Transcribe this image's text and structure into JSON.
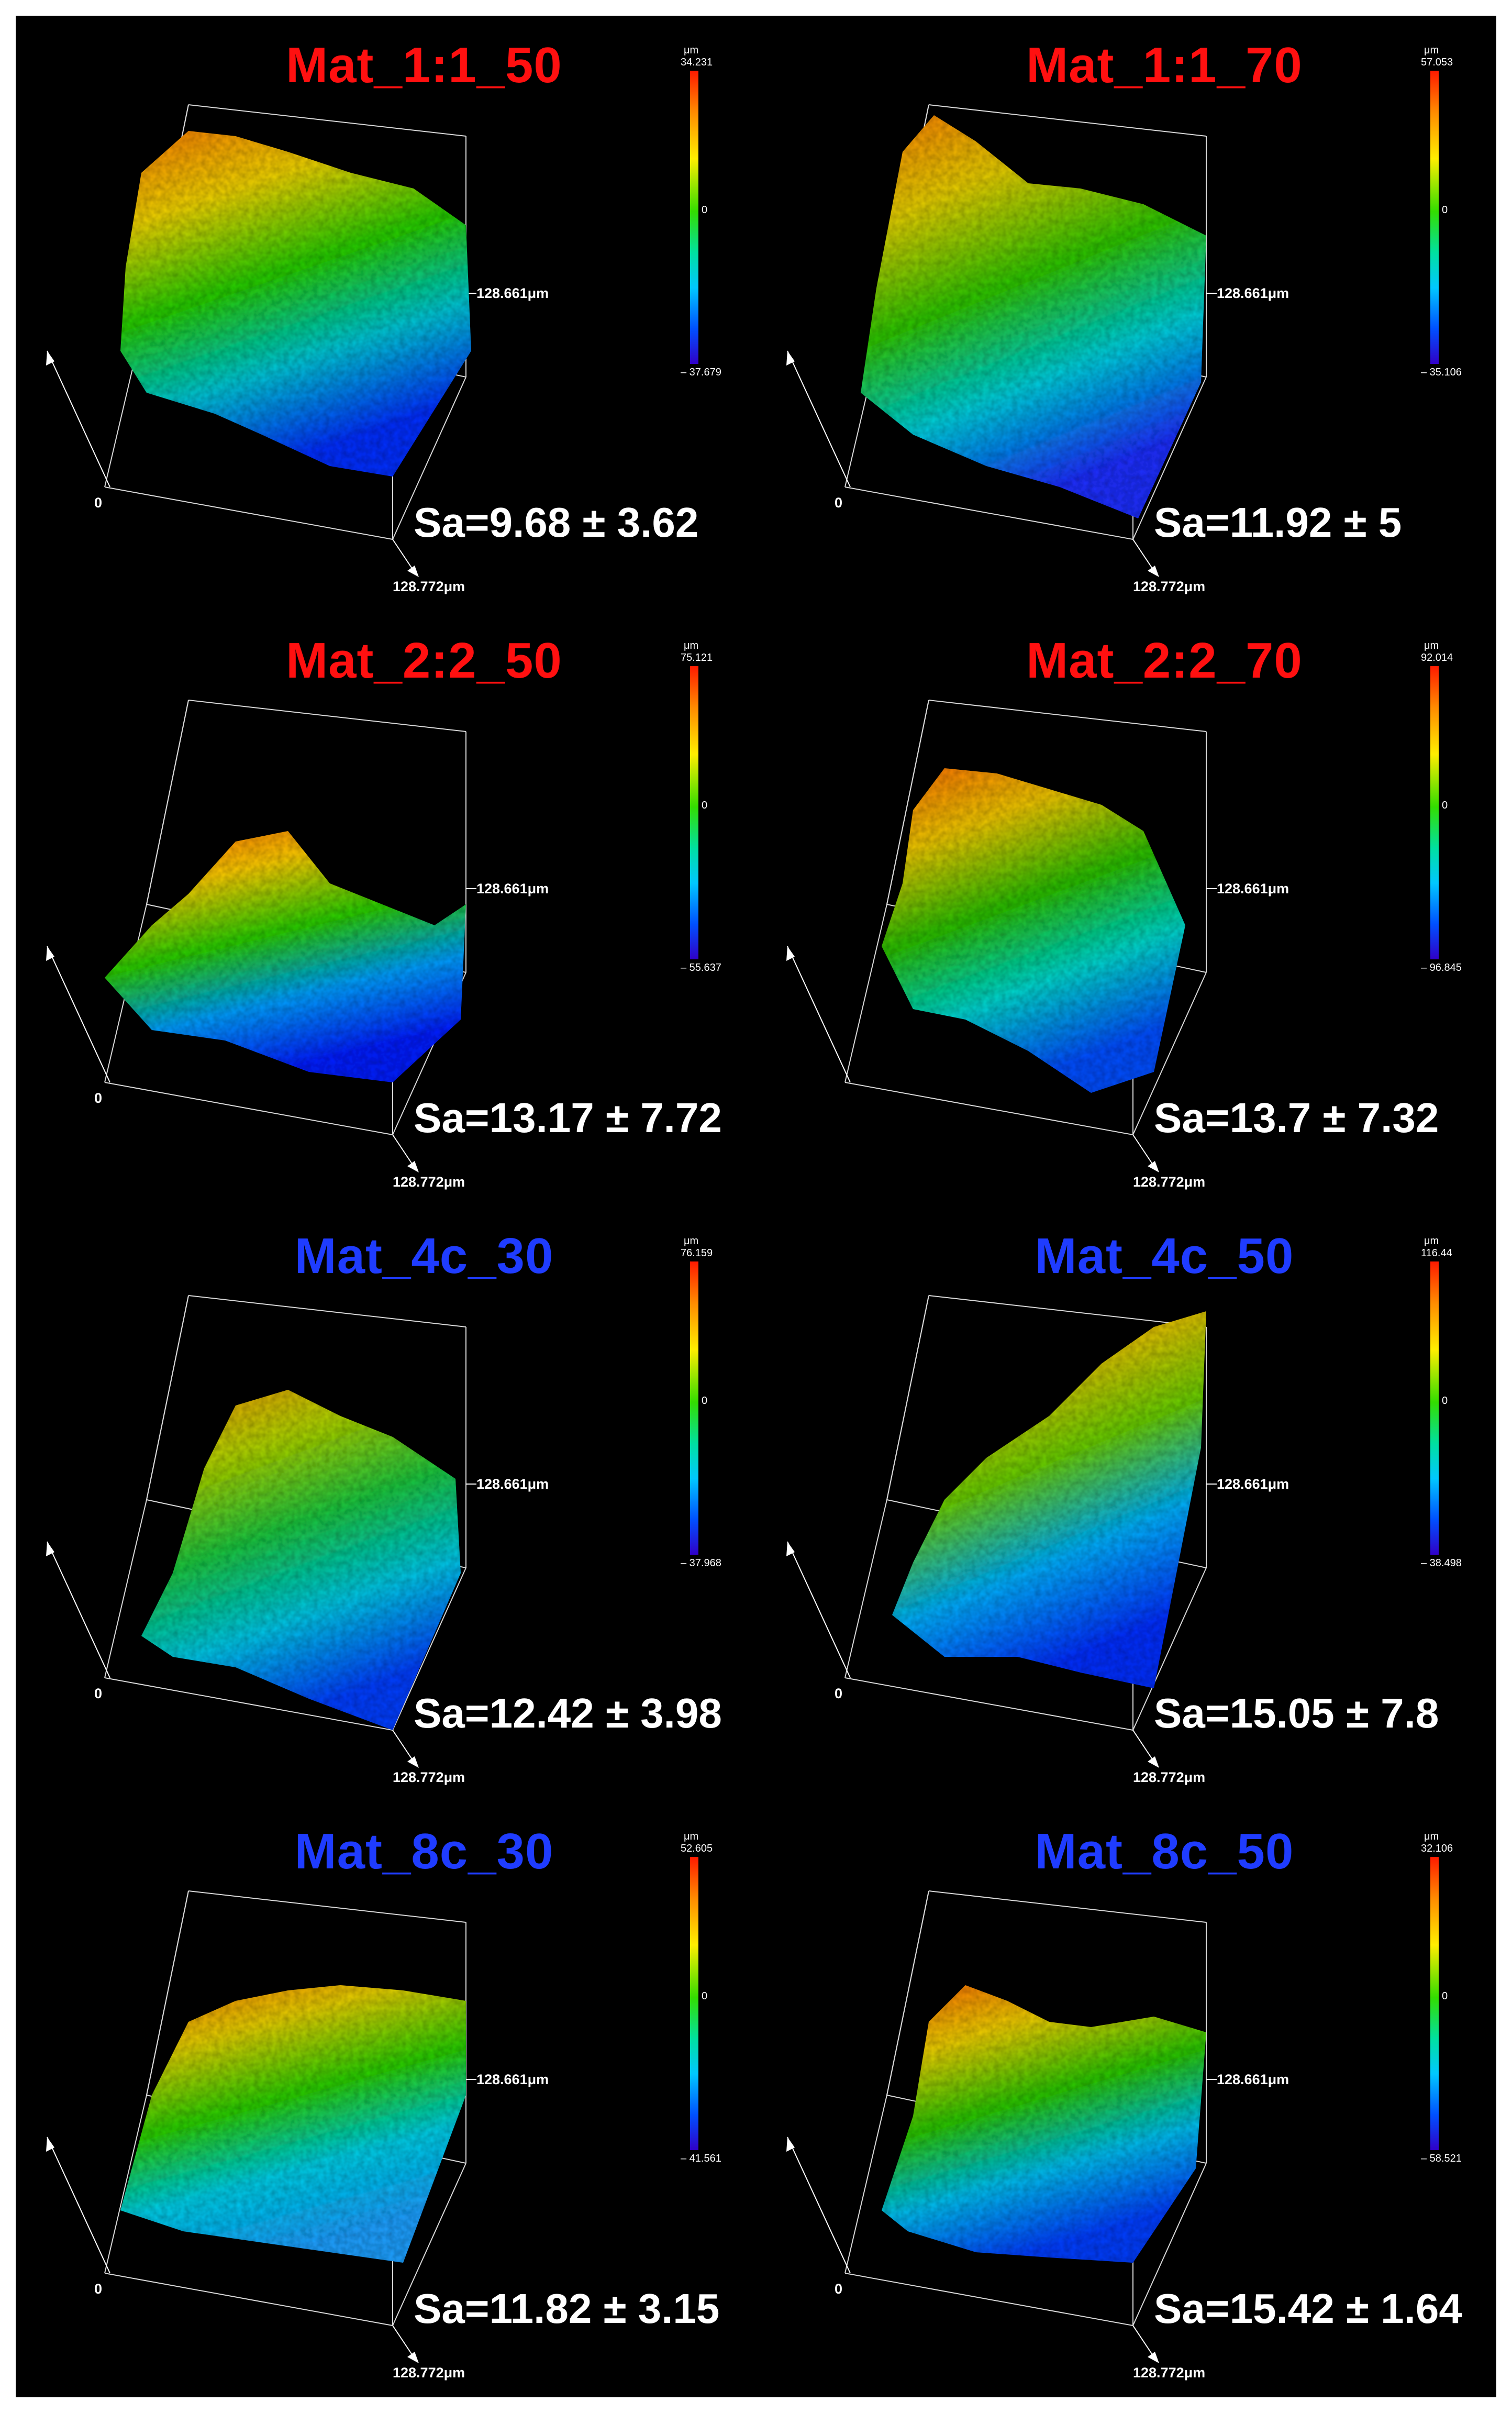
{
  "panels": [
    {
      "title": "Mat_1:1_50",
      "title_color": "#ff1010",
      "sa": "Sa=9.68 ± 3.62",
      "cb_unit": "μm",
      "cb_max": "34.231",
      "cb_zero": "0",
      "cb_min": "– 37.679",
      "axis_y": "128.661μm",
      "axis_x": "128.772μm",
      "axis_origin": "0"
    },
    {
      "title": "Mat_1:1_70",
      "title_color": "#ff1010",
      "sa": "Sa=11.92 ± 5",
      "cb_unit": "μm",
      "cb_max": "57.053",
      "cb_zero": "0",
      "cb_min": "– 35.106",
      "axis_y": "128.661μm",
      "axis_x": "128.772μm",
      "axis_origin": "0"
    },
    {
      "title": "Mat_2:2_50",
      "title_color": "#ff1010",
      "sa": "Sa=13.17 ± 7.72",
      "cb_unit": "μm",
      "cb_max": "75.121",
      "cb_zero": "0",
      "cb_min": "– 55.637",
      "axis_y": "128.661μm",
      "axis_x": "128.772μm",
      "axis_origin": "0"
    },
    {
      "title": "Mat_2:2_70",
      "title_color": "#ff1010",
      "sa": "Sa=13.7 ± 7.32",
      "cb_unit": "μm",
      "cb_max": "92.014",
      "cb_zero": "0",
      "cb_min": "– 96.845",
      "axis_y": "128.661μm",
      "axis_x": "128.772μm",
      "axis_origin": ""
    },
    {
      "title": "Mat_4c_30",
      "title_color": "#1f3cff",
      "sa": "Sa=12.42 ± 3.98",
      "cb_unit": "μm",
      "cb_max": "76.159",
      "cb_zero": "0",
      "cb_min": "– 37.968",
      "axis_y": "128.661μm",
      "axis_x": "128.772μm",
      "axis_origin": "0"
    },
    {
      "title": "Mat_4c_50",
      "title_color": "#1f3cff",
      "sa": "Sa=15.05 ± 7.8",
      "cb_unit": "μm",
      "cb_max": "116.44",
      "cb_zero": "0",
      "cb_min": "– 38.498",
      "axis_y": "128.661μm",
      "axis_x": "128.772μm",
      "axis_origin": "0"
    },
    {
      "title": "Mat_8c_30",
      "title_color": "#1f3cff",
      "sa": "Sa=11.82 ± 3.15",
      "cb_unit": "μm",
      "cb_max": "52.605",
      "cb_zero": "0",
      "cb_min": "– 41.561",
      "axis_y": "128.661μm",
      "axis_x": "128.772μm",
      "axis_origin": "0"
    },
    {
      "title": "Mat_8c_50",
      "title_color": "#1f3cff",
      "sa": "Sa=15.42 ± 1.64",
      "cb_unit": "μm",
      "cb_max": "32.106",
      "cb_zero": "0",
      "cb_min": "– 58.521",
      "axis_y": "128.661μm",
      "axis_x": "128.772μm",
      "axis_origin": "0"
    }
  ]
}
